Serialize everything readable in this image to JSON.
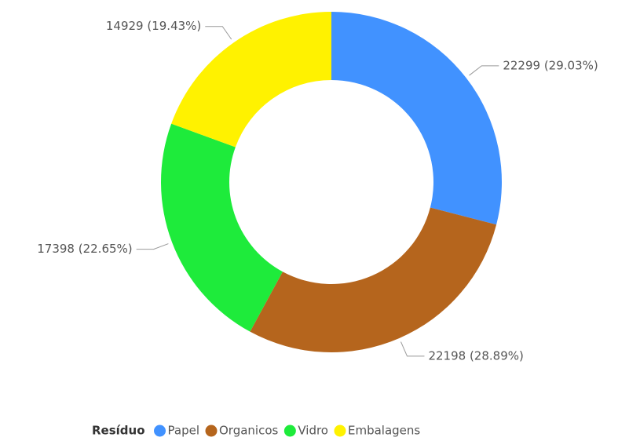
{
  "chart_data": {
    "type": "donut",
    "categories": [
      "Papel",
      "Organicos",
      "Vidro",
      "Embalagens"
    ],
    "values": [
      22299,
      22198,
      17398,
      14929
    ],
    "value_labels": [
      "22299 (29.03%)",
      "22198 (28.89%)",
      "17398 (22.65%)",
      "14929 (19.43%)"
    ],
    "colors": [
      "#4192ff",
      "#b5651d",
      "#1eeb3b",
      "#fff200"
    ],
    "legend_title": "Resíduo",
    "legend": "bottom"
  }
}
